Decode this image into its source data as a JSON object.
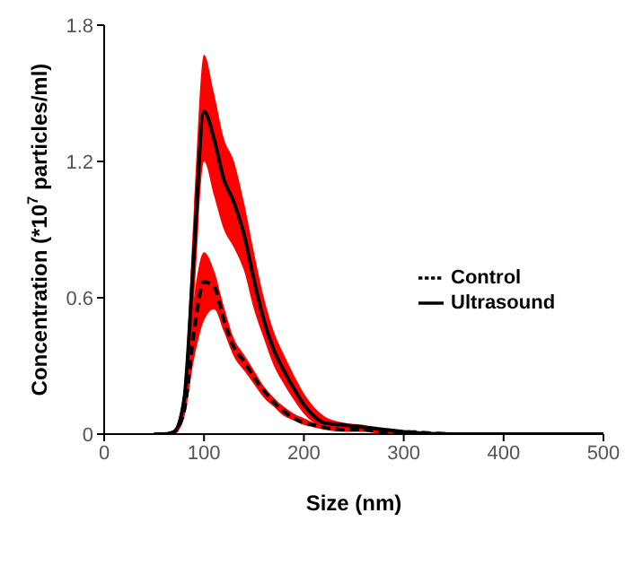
{
  "chart_data": {
    "type": "line",
    "xlabel": "Size (nm)",
    "ylabel": "Concentration (*10$^{7}$ particles/ml)",
    "x": [
      50,
      60,
      70,
      80,
      90,
      100,
      110,
      120,
      130,
      140,
      150,
      160,
      170,
      180,
      190,
      200,
      210,
      220,
      240,
      260,
      280,
      300,
      350,
      400,
      450,
      500
    ],
    "series": [
      {
        "name": "Control",
        "color": "#000000",
        "line_style": "dashed",
        "values": [
          0,
          0,
          0.01,
          0.1,
          0.45,
          0.67,
          0.65,
          0.5,
          0.38,
          0.32,
          0.25,
          0.19,
          0.14,
          0.1,
          0.07,
          0.05,
          0.04,
          0.03,
          0.02,
          0.02,
          0.01,
          0.01,
          0,
          0,
          0,
          0
        ],
        "lower": [
          0,
          0,
          0,
          0.07,
          0.33,
          0.5,
          0.55,
          0.45,
          0.34,
          0.28,
          0.22,
          0.16,
          0.12,
          0.08,
          0.06,
          0.04,
          0.03,
          0.02,
          0.01,
          0.01,
          0,
          0,
          0,
          0,
          0,
          0
        ],
        "upper": [
          0,
          0,
          0.02,
          0.15,
          0.6,
          0.8,
          0.72,
          0.56,
          0.42,
          0.35,
          0.28,
          0.21,
          0.16,
          0.12,
          0.09,
          0.07,
          0.05,
          0.04,
          0.03,
          0.02,
          0.02,
          0.01,
          0,
          0,
          0,
          0
        ]
      },
      {
        "name": "Ultrasound",
        "color": "#000000",
        "line_style": "solid",
        "values": [
          0,
          0,
          0.01,
          0.15,
          0.8,
          1.42,
          1.3,
          1.12,
          1.02,
          0.88,
          0.68,
          0.5,
          0.37,
          0.28,
          0.2,
          0.13,
          0.08,
          0.05,
          0.04,
          0.03,
          0.02,
          0.01,
          0,
          0,
          0,
          0
        ],
        "lower": [
          0,
          0,
          0,
          0.1,
          0.6,
          1.2,
          1.05,
          0.9,
          0.82,
          0.72,
          0.55,
          0.42,
          0.3,
          0.22,
          0.15,
          0.09,
          0.05,
          0.03,
          0.02,
          0.02,
          0.01,
          0,
          0,
          0,
          0,
          0
        ],
        "upper": [
          0,
          0,
          0.02,
          0.2,
          1.0,
          1.67,
          1.5,
          1.3,
          1.2,
          1.02,
          0.8,
          0.6,
          0.45,
          0.35,
          0.26,
          0.18,
          0.12,
          0.08,
          0.05,
          0.04,
          0.02,
          0.01,
          0,
          0,
          0,
          0
        ]
      }
    ],
    "xlim": [
      0,
      500
    ],
    "xticks": [
      0,
      100,
      200,
      300,
      400,
      500
    ],
    "ylim": [
      0,
      1.8
    ],
    "yticks": [
      0,
      0.6,
      1.2,
      1.8
    ],
    "grid": false,
    "legend": "right",
    "marker": "none"
  }
}
